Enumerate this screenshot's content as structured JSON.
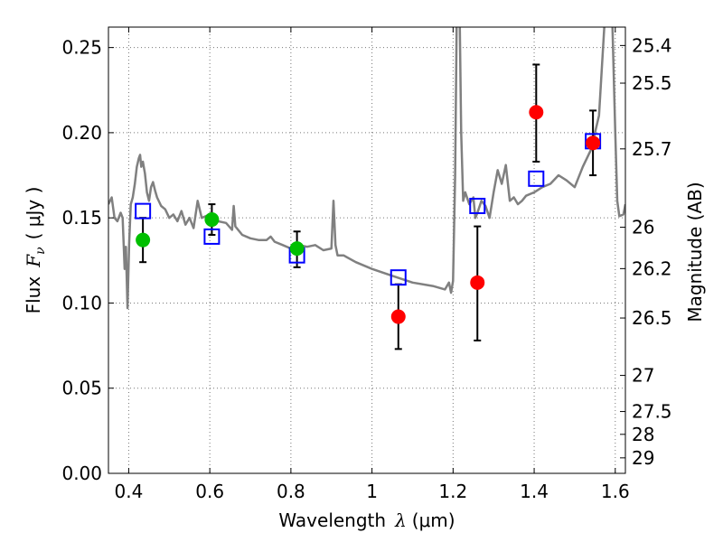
{
  "chart_data": {
    "type": "scatter",
    "title": "",
    "xlabel": "Wavelength",
    "xlabel_symbol": "λ",
    "xlabel_unit": "(μm)",
    "ylabel": "Flux",
    "ylabel_symbol": "F",
    "ylabel_subscript": "ν",
    "ylabel_unit": "( μJy )",
    "y2label": "Magnitude (AB)",
    "xlim": [
      0.35,
      1.625
    ],
    "ylim": [
      0.0,
      0.262
    ],
    "grid": true,
    "xticks": [
      0.4,
      0.6,
      0.8,
      1.0,
      1.2,
      1.4,
      1.6
    ],
    "xtick_labels": [
      "0.4",
      "0.6",
      "0.8",
      "1",
      "1.2",
      "1.4",
      "1.6"
    ],
    "yticks": [
      0.0,
      0.05,
      0.1,
      0.15,
      0.2,
      0.25
    ],
    "ytick_labels": [
      "0.00",
      "0.05",
      "0.10",
      "0.15",
      "0.20",
      "0.25"
    ],
    "y2ticks": [
      {
        "label": "25.4",
        "flux": 0.2512
      },
      {
        "label": "25.5",
        "flux": 0.2291
      },
      {
        "label": "25.7",
        "flux": 0.1905
      },
      {
        "label": "26",
        "flux": 0.1445
      },
      {
        "label": "26.2",
        "flux": 0.1202
      },
      {
        "label": "26.5",
        "flux": 0.0912
      },
      {
        "label": "27",
        "flux": 0.0575
      },
      {
        "label": "27.5",
        "flux": 0.0363
      },
      {
        "label": "28",
        "flux": 0.0229
      },
      {
        "label": "29",
        "flux": 0.0091
      }
    ],
    "series": [
      {
        "marker": "square-open",
        "color": "#0000ff",
        "x": [
          0.435,
          0.605,
          0.815,
          1.065,
          1.26,
          1.405,
          1.545
        ],
        "y": [
          0.154,
          0.139,
          0.128,
          0.115,
          0.157,
          0.173,
          0.195
        ]
      },
      {
        "marker": "circle",
        "color": "#00bf00",
        "x": [
          0.435,
          0.605,
          0.815
        ],
        "y": [
          0.137,
          0.149,
          0.132
        ],
        "yerr_low": [
          0.124,
          0.14,
          0.121
        ],
        "yerr_high": [
          0.15,
          0.158,
          0.142
        ]
      },
      {
        "marker": "circle",
        "color": "#ff0000",
        "x": [
          1.065,
          1.26,
          1.405,
          1.545
        ],
        "y": [
          0.092,
          0.112,
          0.212,
          0.194
        ],
        "yerr_low": [
          0.073,
          0.078,
          0.183,
          0.175
        ],
        "yerr_high": [
          0.111,
          0.145,
          0.24,
          0.213
        ]
      },
      {
        "marker": "line",
        "color": "#808080",
        "x": [
          0.35,
          0.358,
          0.365,
          0.372,
          0.38,
          0.385,
          0.39,
          0.393,
          0.397,
          0.401,
          0.405,
          0.41,
          0.415,
          0.42,
          0.425,
          0.428,
          0.431,
          0.435,
          0.44,
          0.445,
          0.45,
          0.455,
          0.46,
          0.465,
          0.47,
          0.48,
          0.49,
          0.5,
          0.51,
          0.52,
          0.53,
          0.54,
          0.55,
          0.56,
          0.57,
          0.58,
          0.6,
          0.62,
          0.64,
          0.655,
          0.659,
          0.663,
          0.68,
          0.7,
          0.72,
          0.74,
          0.75,
          0.76,
          0.78,
          0.8,
          0.82,
          0.84,
          0.86,
          0.88,
          0.9,
          0.905,
          0.91,
          0.915,
          0.93,
          0.96,
          1.0,
          1.05,
          1.1,
          1.15,
          1.18,
          1.19,
          1.195,
          1.2,
          1.205,
          1.21,
          1.215,
          1.22,
          1.225,
          1.23,
          1.24,
          1.25,
          1.255,
          1.26,
          1.27,
          1.28,
          1.29,
          1.3,
          1.31,
          1.32,
          1.33,
          1.34,
          1.35,
          1.36,
          1.37,
          1.38,
          1.4,
          1.42,
          1.44,
          1.46,
          1.48,
          1.5,
          1.52,
          1.54,
          1.56,
          1.57,
          1.58,
          1.59,
          1.6,
          1.605,
          1.61,
          1.62,
          1.625
        ],
        "y": [
          0.158,
          0.162,
          0.15,
          0.148,
          0.153,
          0.15,
          0.12,
          0.133,
          0.097,
          0.135,
          0.158,
          0.162,
          0.17,
          0.18,
          0.185,
          0.187,
          0.18,
          0.183,
          0.176,
          0.165,
          0.16,
          0.168,
          0.171,
          0.166,
          0.162,
          0.157,
          0.155,
          0.15,
          0.152,
          0.148,
          0.154,
          0.146,
          0.15,
          0.144,
          0.16,
          0.15,
          0.152,
          0.148,
          0.147,
          0.143,
          0.157,
          0.145,
          0.14,
          0.138,
          0.137,
          0.137,
          0.139,
          0.136,
          0.134,
          0.132,
          0.134,
          0.133,
          0.134,
          0.131,
          0.132,
          0.16,
          0.134,
          0.128,
          0.128,
          0.124,
          0.12,
          0.116,
          0.112,
          0.11,
          0.108,
          0.112,
          0.106,
          0.113,
          0.175,
          0.29,
          0.29,
          0.2,
          0.16,
          0.165,
          0.158,
          0.162,
          0.15,
          0.153,
          0.16,
          0.157,
          0.15,
          0.165,
          0.178,
          0.17,
          0.181,
          0.16,
          0.162,
          0.158,
          0.16,
          0.163,
          0.165,
          0.168,
          0.17,
          0.175,
          0.172,
          0.168,
          0.18,
          0.19,
          0.21,
          0.25,
          0.29,
          0.29,
          0.2,
          0.16,
          0.151,
          0.152,
          0.158
        ]
      }
    ]
  }
}
